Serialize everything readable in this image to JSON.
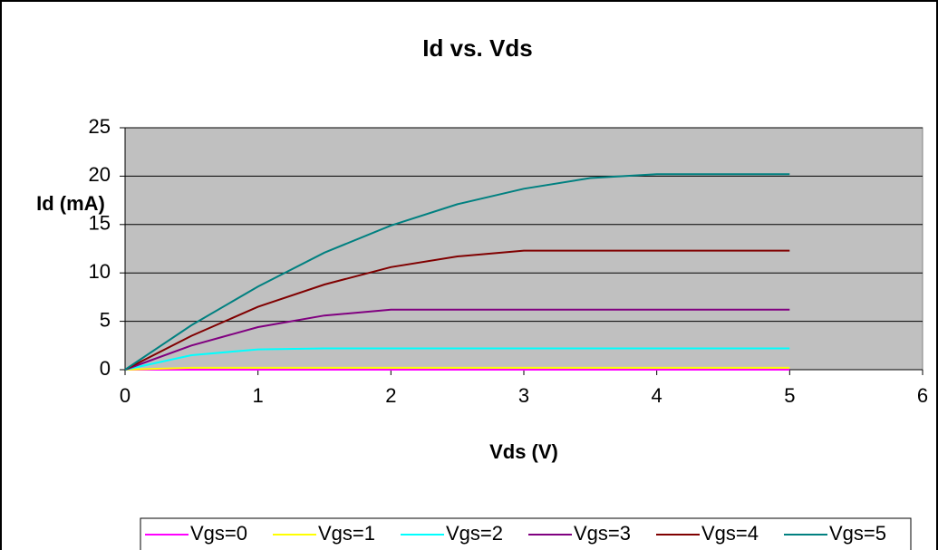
{
  "chart_data": {
    "type": "line",
    "title": "Id vs. Vds",
    "x_label": "Vds (V)",
    "y_label": "Id (mA)",
    "x": [
      0,
      0.5,
      1,
      1.5,
      2,
      2.5,
      3,
      3.5,
      4,
      4.5,
      5
    ],
    "series": [
      {
        "name": "Vgs=0",
        "color": "#ff00ff",
        "values": [
          0,
          0,
          0,
          0,
          0,
          0,
          0,
          0,
          0,
          0,
          0
        ]
      },
      {
        "name": "Vgs=1",
        "color": "#ffff00",
        "values": [
          0,
          0.2,
          0.2,
          0.2,
          0.2,
          0.2,
          0.2,
          0.2,
          0.2,
          0.2,
          0.2
        ]
      },
      {
        "name": "Vgs=2",
        "color": "#00ffff",
        "values": [
          0,
          1.5,
          2.1,
          2.2,
          2.2,
          2.2,
          2.2,
          2.2,
          2.2,
          2.2,
          2.2
        ]
      },
      {
        "name": "Vgs=3",
        "color": "#800080",
        "values": [
          0,
          2.5,
          4.4,
          5.6,
          6.2,
          6.2,
          6.2,
          6.2,
          6.2,
          6.2,
          6.2
        ]
      },
      {
        "name": "Vgs=4",
        "color": "#800000",
        "values": [
          0,
          3.5,
          6.5,
          8.8,
          10.6,
          11.7,
          12.3,
          12.3,
          12.3,
          12.3,
          12.3
        ]
      },
      {
        "name": "Vgs=5",
        "color": "#008080",
        "values": [
          0,
          4.6,
          8.6,
          12.1,
          14.9,
          17.1,
          18.7,
          19.8,
          20.2,
          20.2,
          20.2
        ]
      }
    ],
    "xlim": [
      0,
      6
    ],
    "xticks": [
      0,
      1,
      2,
      3,
      4,
      5,
      6
    ],
    "ylim": [
      0,
      25
    ],
    "yticks": [
      0,
      5,
      10,
      15,
      20,
      25
    ],
    "grid": true,
    "legend": "bottom"
  }
}
